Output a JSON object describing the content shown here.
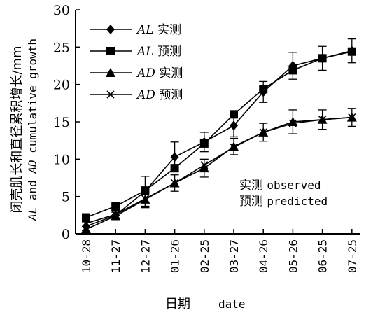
{
  "chart_data": {
    "type": "line",
    "x_categories": [
      "10-28",
      "11-27",
      "12-27",
      "01-26",
      "02-25",
      "03-27",
      "04-26",
      "05-26",
      "06-25",
      "07-25"
    ],
    "xlabel": {
      "cn": "日期",
      "en": "date"
    },
    "ylabel": {
      "line1": "闭壳肌长和直径累积增长/mm",
      "line2_prefix": "AL",
      "line2_mid": " and ",
      "line2_mid2": "AD",
      "line2_suffix": " cumulative growth"
    },
    "ylim": [
      0,
      30
    ],
    "yticks": [
      0,
      5,
      10,
      15,
      20,
      25,
      30
    ],
    "grid": false,
    "legend_position": "top-left",
    "series": [
      {
        "name_italic": "AL",
        "name_cn": "实测",
        "marker": "diamond",
        "values": [
          1.0,
          2.5,
          5.7,
          10.3,
          12.3,
          14.5,
          19.0,
          22.5,
          23.5,
          24.5
        ],
        "errors": [
          0.6,
          0.6,
          2.0,
          2.0,
          1.3,
          1.5,
          1.4,
          1.8,
          1.6,
          1.6
        ]
      },
      {
        "name_italic": "AL",
        "name_cn": "预测",
        "marker": "square",
        "values": [
          2.2,
          3.7,
          5.8,
          8.8,
          12.1,
          16.0,
          19.4,
          21.9,
          23.5,
          24.4
        ],
        "errors": []
      },
      {
        "name_italic": "AD",
        "name_cn": "实测",
        "marker": "triangle",
        "values": [
          0.6,
          2.4,
          4.6,
          6.8,
          8.8,
          11.7,
          13.6,
          15.0,
          15.3,
          15.6
        ],
        "errors": [
          0.4,
          0.5,
          1.1,
          1.1,
          1.2,
          1.1,
          1.2,
          1.6,
          1.3,
          1.2
        ]
      },
      {
        "name_italic": "AD",
        "name_cn": "预测",
        "marker": "x",
        "values": [
          1.4,
          2.6,
          4.7,
          6.8,
          9.2,
          11.6,
          13.6,
          14.8,
          15.3,
          15.6
        ],
        "errors": []
      }
    ],
    "annotations": [
      {
        "cn": "实测",
        "en": "observed"
      },
      {
        "cn": "预测",
        "en": "predicted"
      }
    ]
  }
}
